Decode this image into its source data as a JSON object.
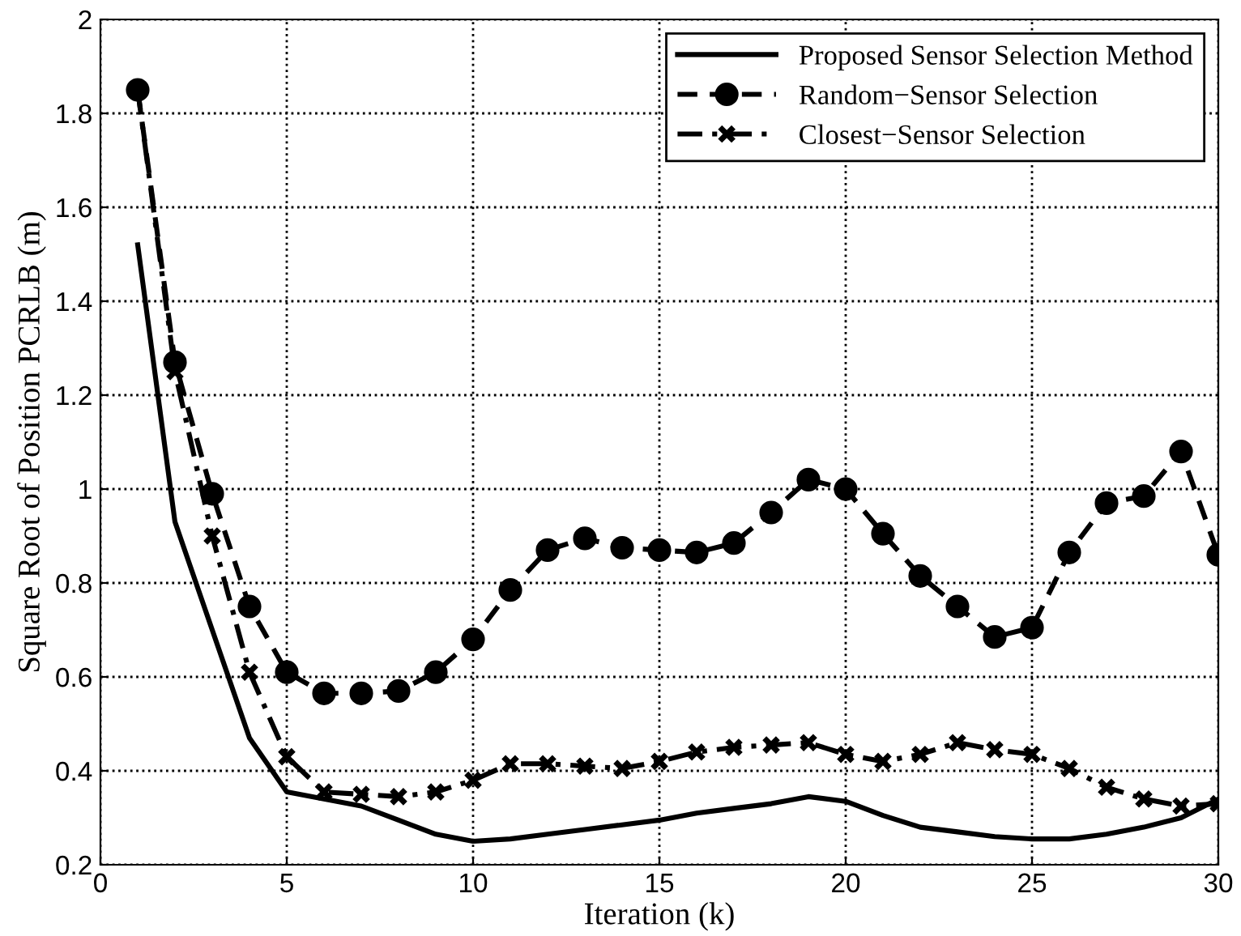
{
  "chart_data": {
    "type": "line",
    "xlabel": "Iteration (k)",
    "ylabel": "Square Root of Position PCRLB (m)",
    "x": [
      1,
      2,
      3,
      4,
      5,
      6,
      7,
      8,
      9,
      10,
      11,
      12,
      13,
      14,
      15,
      16,
      17,
      18,
      19,
      20,
      21,
      22,
      23,
      24,
      25,
      26,
      27,
      28,
      29,
      30
    ],
    "series": [
      {
        "name": "Proposed Sensor Selection Method",
        "color": "#000000",
        "line_style": "solid",
        "marker": "none",
        "values": [
          1.52,
          0.93,
          0.7,
          0.47,
          0.355,
          0.34,
          0.325,
          0.295,
          0.265,
          0.25,
          0.255,
          0.265,
          0.275,
          0.285,
          0.295,
          0.31,
          0.32,
          0.33,
          0.345,
          0.335,
          0.305,
          0.28,
          0.27,
          0.26,
          0.255,
          0.255,
          0.265,
          0.28,
          0.3,
          0.34
        ]
      },
      {
        "name": "Random−Sensor Selection",
        "color": "#000000",
        "line_style": "dashed",
        "marker": "circle",
        "values": [
          1.85,
          1.27,
          0.99,
          0.75,
          0.61,
          0.565,
          0.565,
          0.57,
          0.61,
          0.68,
          0.785,
          0.87,
          0.895,
          0.875,
          0.87,
          0.865,
          0.885,
          0.95,
          1.02,
          1.0,
          0.905,
          0.815,
          0.75,
          0.685,
          0.705,
          0.865,
          0.97,
          0.985,
          1.08,
          0.86
        ]
      },
      {
        "name": "Closest−Sensor Selection",
        "color": "#000000",
        "line_style": "dashdot",
        "marker": "cross",
        "values": [
          1.85,
          1.25,
          0.9,
          0.61,
          0.43,
          0.355,
          0.35,
          0.345,
          0.355,
          0.38,
          0.415,
          0.415,
          0.41,
          0.405,
          0.42,
          0.44,
          0.45,
          0.455,
          0.46,
          0.435,
          0.42,
          0.435,
          0.46,
          0.445,
          0.435,
          0.405,
          0.365,
          0.34,
          0.325,
          0.33
        ]
      }
    ],
    "xlim": [
      0,
      30
    ],
    "xticks": [
      0,
      5,
      10,
      15,
      20,
      25,
      30
    ],
    "ylim": [
      0.2,
      2
    ],
    "yticks": [
      {
        "value": 0.2,
        "label": "0.2"
      },
      {
        "value": 0.4,
        "label": "0.4"
      },
      {
        "value": 0.6,
        "label": "0.6"
      },
      {
        "value": 0.8,
        "label": "0.8"
      },
      {
        "value": 1,
        "label": "1"
      },
      {
        "value": 1.2,
        "label": "1.2"
      },
      {
        "value": 1.4,
        "label": "1.4"
      },
      {
        "value": 1.6,
        "label": "1.6"
      },
      {
        "value": 1.8,
        "label": "1.8"
      },
      {
        "value": 2,
        "label": "2"
      }
    ],
    "grid": true,
    "legend": "top right"
  }
}
